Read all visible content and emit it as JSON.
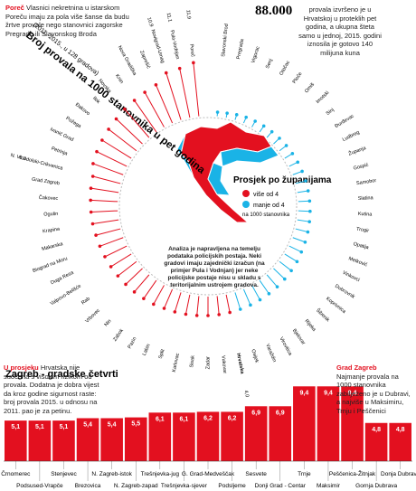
{
  "header": {
    "lead_title": "Poreč",
    "lead_text": "Vlasnici nekretnina u istarskom Poreču imaju za pola više šanse da budu žrtve provale nego stanovnici zagorske Pregrade ili Slavonskog Broda",
    "big_number": "88.000",
    "big_text": "provala izvršeno je u Hrvatskoj u proteklih pet godina, a ukupna šteta samo u jednoj, 2015. godini iznosila je gotovo 140 milijuna kuna",
    "center_note": "Analiza je napravljena na temelju podataka policijskih postaja. Neki gradovi imaju zajednički izračun (na primjer Pula i Vodnjan) jer neke policijske postaje nisu u skladu s teritorijalnim ustrojem gradova.",
    "avg_title": "U prosjeku",
    "avg_text": "Hrvatska nije suočena s visokim rizikom od provala. Dodatna je dobra vijest da kroz godine sigurnost raste: broj provala 2015. u odnosu na 2011. pao je za petinu.",
    "zg_title": "Grad Zagreb",
    "zg_text": "Najmanje provala na 1000 stanovnika zabilježeno je u Dubravi, a najviše u Maksimiru, Trnju i Peščenici"
  },
  "chart_data": [
    {
      "type": "radial",
      "title": "Broj provala na 1000 stanovnika u pet godina",
      "subtitle": "(2011.-2015., u 128 gradova)",
      "legend_title": "Prosjek po županijama",
      "legend_note": "na 1000 stanovnika",
      "ylim": [
        0,
        12
      ],
      "series": [
        {
          "name": "više od 4",
          "color": "#e3101f",
          "categories": [
            "Poreč",
            "Pula-Vodnjan",
            "Novigrad-Umag",
            "Zaprešić",
            "Nova Gradiška",
            "Knin",
            "Novska",
            "Ilok",
            "Đakovo",
            "Požega",
            "Ivanić Grad",
            "Petrinja",
            "N. Vinodolski-Crikvenica",
            "Grad Zagreb",
            "Čakovec",
            "Ogulin",
            "Krapina",
            "Makarska",
            "Biograd na Moru",
            "Duga Resa",
            "Valpovo-Belišće",
            "Rab",
            "Vrbovec",
            "Nin",
            "Zabok",
            "Pazin",
            "Labin",
            "Split",
            "Karlovac",
            "Sisak",
            "Zadar",
            "Vukovar",
            "Hrvatska"
          ],
          "values": [
            11.9,
            11.1,
            10.9,
            9.2,
            8.8,
            8.5,
            8.3,
            8.0,
            7.8,
            7.6,
            7.4,
            7.1,
            6.3,
            6.2,
            6.0,
            5.9,
            5.8,
            5.6,
            5.5,
            5.4,
            5.3,
            5.2,
            5.1,
            5.0,
            4.9,
            4.8,
            4.6,
            4.5,
            4.4,
            4.3,
            4.2,
            4.1,
            4.0
          ],
          "value_labels": [
            "11,9",
            "11,1",
            "10,9",
            null,
            null,
            null,
            null,
            null,
            null,
            null,
            null,
            null,
            "6,3",
            null,
            null,
            null,
            null,
            null,
            null,
            null,
            null,
            null,
            null,
            null,
            null,
            null,
            null,
            null,
            null,
            null,
            null,
            null,
            "4,0"
          ]
        },
        {
          "name": "manje od 4",
          "color": "#1ab3e6",
          "categories": [
            "Osijek",
            "Varaždin",
            "Virovitica",
            "Bjelovar",
            "Rijeka",
            "Šibenik",
            "Koprivnica",
            "Dubrovnik",
            "Vinkovci",
            "Metković",
            "Opatija",
            "Trogir",
            "Kutina",
            "Slatina",
            "Samobor",
            "Gospić",
            "Županja",
            "Ludbreg",
            "Đurđevac",
            "Sinj",
            "Imotski",
            "Omiš",
            "Ploče",
            "Otočac",
            "Senj",
            "Vrgorac",
            "Pregrada",
            "Slavonski Brod"
          ],
          "values": [
            3.9,
            3.8,
            3.7,
            3.6,
            3.5,
            3.4,
            3.3,
            3.2,
            3.0,
            2.9,
            2.8,
            2.7,
            2.6,
            2.5,
            2.4,
            2.3,
            2.2,
            2.1,
            2.0,
            1.9,
            1.8,
            1.7,
            1.6,
            1.5,
            1.4,
            1.2,
            1.0,
            0.9
          ]
        }
      ]
    },
    {
      "type": "bar",
      "title": "Zagreb - gradske četvrti",
      "color": "#e3101f",
      "ylim": [
        0,
        10
      ],
      "categories": [
        "Črnomerec",
        "Podsused-Vrapče",
        "Stenjevec",
        "Brezovica",
        "N. Zagreb-istok",
        "N. Zagreb-zapad",
        "Trešnjevka-jug",
        "Trešnjevka-sjever",
        "G. Grad-Medveščak",
        "Podsljeme",
        "Sesvete",
        "Donji Grad - Centar",
        "Trnje",
        "Maksimir",
        "Peščenica-Žitnjak",
        "Gornja Dubrava",
        "Donja Dubrava"
      ],
      "values": [
        5.1,
        5.1,
        5.1,
        5.4,
        5.4,
        5.5,
        6.1,
        6.1,
        6.2,
        6.2,
        6.9,
        6.9,
        9.4,
        9.4,
        9.4,
        4.8,
        4.8
      ],
      "value_labels": [
        "5,1",
        "5,1",
        "5,1",
        "5,4",
        "5,4",
        "5,5",
        "6,1",
        "6,1",
        "6,2",
        "6,2",
        "6,9",
        "6,9",
        "9,4",
        "9,4",
        "9,4",
        "4,8",
        "4,8"
      ]
    }
  ]
}
